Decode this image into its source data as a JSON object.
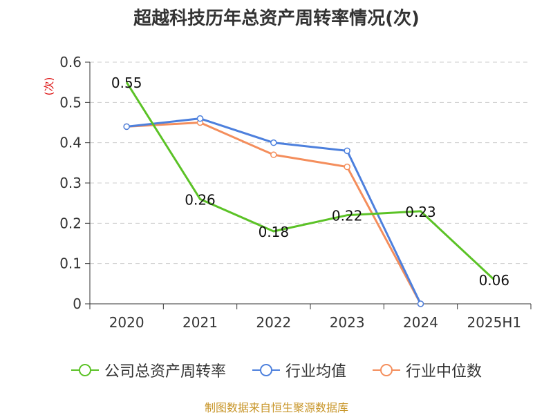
{
  "chart_data": {
    "type": "line",
    "title": "超越科技历年总资产周转率情况(次)",
    "ylabel": "(次)",
    "xlabel": "",
    "categories": [
      "2020",
      "2021",
      "2022",
      "2023",
      "2024",
      "2025H1"
    ],
    "ylim": [
      0,
      0.6
    ],
    "yticks": [
      "0",
      "0.1",
      "0.2",
      "0.3",
      "0.4",
      "0.5",
      "0.6"
    ],
    "grid": true,
    "legend_position": "bottom",
    "series": [
      {
        "name": "公司总资产周转率",
        "color": "#5bc226",
        "values": [
          0.55,
          0.26,
          0.18,
          0.22,
          0.23,
          0.06
        ],
        "data_labels": [
          "0.55",
          "0.26",
          "0.18",
          "0.22",
          "0.23",
          "0.06"
        ]
      },
      {
        "name": "行业均值",
        "color": "#4d80dd",
        "values": [
          0.44,
          0.46,
          0.4,
          0.38,
          0.0,
          null
        ]
      },
      {
        "name": "行业中位数",
        "color": "#f48e5c",
        "values": [
          0.44,
          0.45,
          0.37,
          0.34,
          0.0,
          null
        ]
      }
    ]
  },
  "footer": {
    "source": "制图数据来自恒生聚源数据库"
  }
}
